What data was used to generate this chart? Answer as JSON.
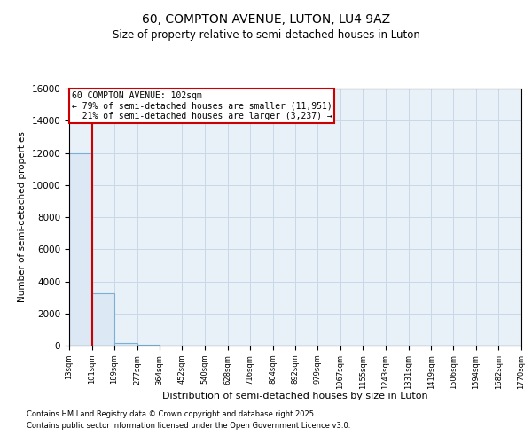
{
  "title1": "60, COMPTON AVENUE, LUTON, LU4 9AZ",
  "title2": "Size of property relative to semi-detached houses in Luton",
  "xlabel": "Distribution of semi-detached houses by size in Luton",
  "ylabel": "Number of semi-detached properties",
  "bar_edges": [
    13,
    101,
    189,
    277,
    364,
    452,
    540,
    628,
    716,
    804,
    892,
    979,
    1067,
    1155,
    1243,
    1331,
    1419,
    1506,
    1594,
    1682,
    1770
  ],
  "bar_heights": [
    11951,
    3237,
    150,
    50,
    20,
    10,
    8,
    5,
    4,
    3,
    3,
    2,
    2,
    1,
    1,
    1,
    1,
    1,
    1,
    1
  ],
  "bar_color": "#dce9f5",
  "bar_edge_color": "#7ab0d4",
  "property_size": 102,
  "pct_smaller": 79,
  "n_smaller": 11951,
  "pct_larger": 21,
  "n_larger": 3237,
  "red_line_color": "#cc0000",
  "ylim": [
    0,
    16000
  ],
  "yticks": [
    0,
    2000,
    4000,
    6000,
    8000,
    10000,
    12000,
    14000,
    16000
  ],
  "grid_color": "#c8d8e8",
  "bg_color": "#e8f0f8",
  "footer1": "Contains HM Land Registry data © Crown copyright and database right 2025.",
  "footer2": "Contains public sector information licensed under the Open Government Licence v3.0."
}
